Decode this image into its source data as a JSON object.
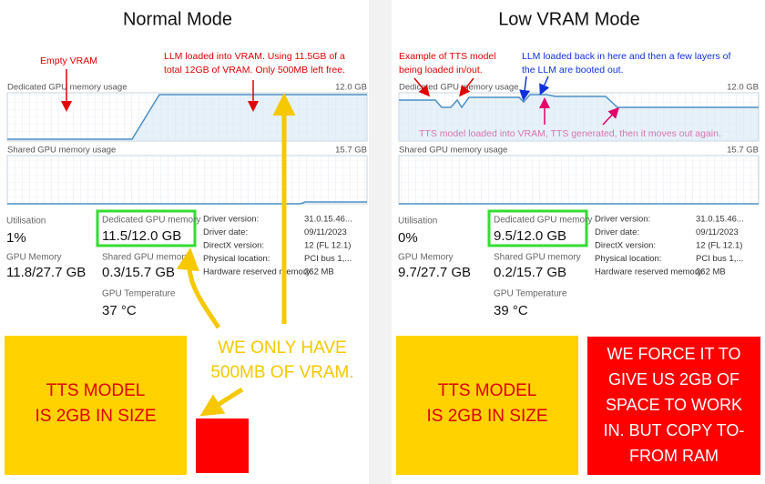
{
  "panels": [
    {
      "title": "Normal Mode",
      "notes": [
        {
          "lines": [
            "Empty VRAM"
          ]
        },
        {
          "lines": [
            "LLM loaded into VRAM. Using 11.5GB of a",
            "total 12GB of VRAM. Only 500MB left free."
          ]
        }
      ],
      "graphs": [
        {
          "label": "Dedicated GPU memory usage",
          "max": "12.0 GB"
        },
        {
          "label": "Shared GPU memory usage",
          "max": "15.7 GB"
        }
      ],
      "stats": [
        {
          "label": "Utilisation",
          "value": "1%"
        },
        {
          "label": "GPU Memory",
          "value": "11.8/27.7 GB"
        },
        {
          "label": "Dedicated GPU memory",
          "value": "11.5/12.0 GB"
        },
        {
          "label": "Shared GPU memory",
          "value": "0.3/15.7 GB"
        },
        {
          "label": "GPU Temperature",
          "value": "37 °C"
        }
      ],
      "details": [
        {
          "label": "Driver version:",
          "value": "31.0.15.46..."
        },
        {
          "label": "Driver date:",
          "value": "09/11/2023"
        },
        {
          "label": "DirectX version:",
          "value": "12 (FL 12.1)"
        },
        {
          "label": "Physical location:",
          "value": "PCI bus 1,..."
        },
        {
          "label": "Hardware reserved memory:",
          "value": "262 MB"
        }
      ],
      "callout": [
        "TTS MODEL",
        "IS 2GB IN SIZE"
      ],
      "extra": [
        "WE ONLY HAVE",
        "500MB OF VRAM."
      ]
    },
    {
      "title": "Low VRAM Mode",
      "notes": [
        {
          "lines": [
            "Example of TTS model",
            "being loaded in/out."
          ]
        },
        {
          "lines": [
            "LLM loaded back in here and then a few layers of",
            "the LLM are booted out."
          ]
        },
        {
          "lines": [
            "TTS model loaded into VRAM, TTS generated, then it moves out again."
          ]
        }
      ],
      "graphs": [
        {
          "label": "Dedicated GPU memory usage",
          "max": "12.0 GB"
        },
        {
          "label": "Shared GPU memory usage",
          "max": "15.7 GB"
        }
      ],
      "stats": [
        {
          "label": "Utilisation",
          "value": "0%"
        },
        {
          "label": "GPU Memory",
          "value": "9.7/27.7 GB"
        },
        {
          "label": "Dedicated GPU memory",
          "value": "9.5/12.0 GB"
        },
        {
          "label": "Shared GPU memory",
          "value": "0.2/15.7 GB"
        },
        {
          "label": "GPU Temperature",
          "value": "39 °C"
        }
      ],
      "details": [
        {
          "label": "Driver version:",
          "value": "31.0.15.46..."
        },
        {
          "label": "Driver date:",
          "value": "09/11/2023"
        },
        {
          "label": "DirectX version:",
          "value": "12 (FL 12.1)"
        },
        {
          "label": "Physical location:",
          "value": "PCI bus 1,..."
        },
        {
          "label": "Hardware reserved memory:",
          "value": "262 MB"
        }
      ],
      "callout": [
        "TTS MODEL",
        "IS 2GB IN SIZE"
      ],
      "extra": [
        "WE FORCE IT TO",
        "GIVE US 2GB OF",
        "SPACE TO WORK",
        "IN. BUT COPY TO-",
        "FROM RAM"
      ]
    }
  ]
}
